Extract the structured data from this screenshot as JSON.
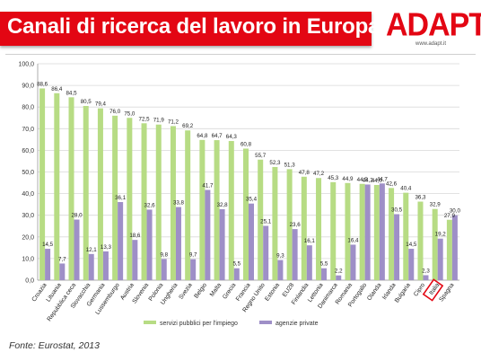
{
  "header": {
    "title": "Canali di ricerca del lavoro in Europa",
    "logo_text": "ADAPT",
    "logo_url": "www.adapt.it"
  },
  "footer": {
    "source": "Fonte: Eurostat, 2013"
  },
  "colors": {
    "title_background": "#e30613",
    "series_public": "#b7dc84",
    "series_private": "#9e8fc7",
    "highlight": "#e30613"
  },
  "chart_data": {
    "type": "bar",
    "categories": [
      "Croazia",
      "Lituania",
      "Repubblica ceca",
      "Slovacchia",
      "Germania",
      "Lussemburgo",
      "Austria",
      "Slovenia",
      "Polonia",
      "Ungheria",
      "Svezia",
      "Belgio",
      "Malta",
      "Grecia",
      "Francia",
      "Regno Unito",
      "Estonia",
      "EU28",
      "Finlandia",
      "Lettonia",
      "Danimarca",
      "Romania",
      "Portogallo",
      "Olanda",
      "Irlanda",
      "Bulgaria",
      "Cipro",
      "Italia",
      "Spagna"
    ],
    "series": [
      {
        "name": "servizi pubblici per l'impiego",
        "color": "#b7dc84",
        "values": [
          88.6,
          86.4,
          84.5,
          80.5,
          79.4,
          76.0,
          75.0,
          72.5,
          71.9,
          71.2,
          69.2,
          64.8,
          64.7,
          64.3,
          60.8,
          55.7,
          52.3,
          51.3,
          47.8,
          47.2,
          45.3,
          44.9,
          44.5,
          44.0,
          42.6,
          40.4,
          36.3,
          32.9,
          27.9
        ],
        "labels": [
          "88,6",
          "86,4",
          "84,5",
          "80,5",
          "79,4",
          "76,0",
          "75,0",
          "72,5",
          "71,9",
          "71,2",
          "69,2",
          "64,8",
          "64,7",
          "64,3",
          "60,8",
          "55,7",
          "52,3",
          "51,3",
          "47,8",
          "47,2",
          "45,3",
          "44,9",
          "44,5",
          "44,0",
          "42,6",
          "40,4",
          "36,3",
          "32,9",
          "27,9"
        ]
      },
      {
        "name": "agenzie private",
        "color": "#9e8fc7",
        "values": [
          14.5,
          7.7,
          28.0,
          12.1,
          13.3,
          36.1,
          18.6,
          32.6,
          9.8,
          33.8,
          9.7,
          41.7,
          32.8,
          5.5,
          35.4,
          25.1,
          9.3,
          23.6,
          16.1,
          5.5,
          2.2,
          16.4,
          44.2,
          44.7,
          30.5,
          14.5,
          2.3,
          19.2,
          30.0
        ],
        "labels": [
          "14,5",
          "7,7",
          "28,0",
          "12,1",
          "13,3",
          "36,1",
          "18,6",
          "32,6",
          "9,8",
          "33,8",
          "9,7",
          "41,7",
          "32,8",
          "5,5",
          "35,4",
          "25,1",
          "9,3",
          "23,6",
          "16,1",
          "5,5",
          "2,2",
          "16,4",
          "44,2",
          "44,7",
          "30,5",
          "14,5",
          "2,3",
          "19,2",
          "30,0"
        ]
      }
    ],
    "y_ticks": [
      "0,0",
      "10,0",
      "20,0",
      "30,0",
      "40,0",
      "50,0",
      "60,0",
      "70,0",
      "80,0",
      "90,0",
      "100,0"
    ],
    "ylim": [
      0,
      100
    ],
    "grid": true,
    "legend_position": "bottom",
    "highlighted_category": "Italia"
  }
}
